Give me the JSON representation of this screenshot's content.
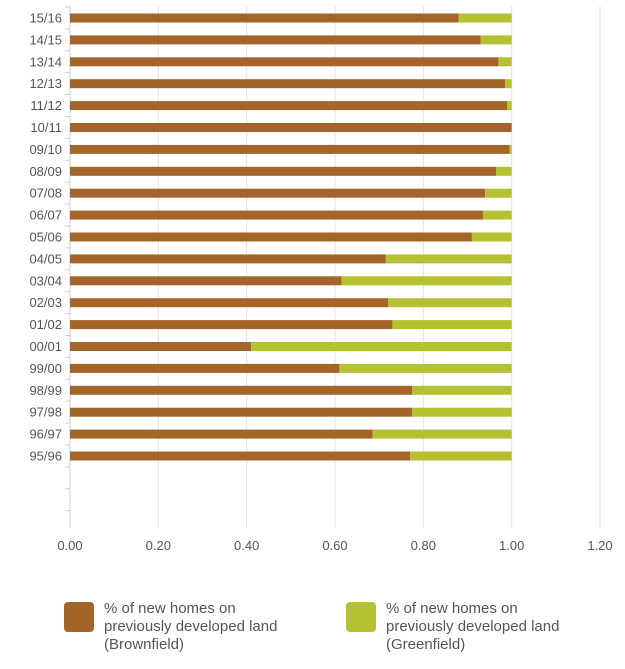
{
  "chart_data": {
    "type": "bar",
    "orientation": "horizontal",
    "stacked": true,
    "categories": [
      "15/16",
      "14/15",
      "13/14",
      "12/13",
      "11/12",
      "10/11",
      "09/10",
      "08/09",
      "07/08",
      "06/07",
      "05/06",
      "04/05",
      "03/04",
      "02/03",
      "01/02",
      "00/01",
      "99/00",
      "98/99",
      "97/98",
      "96/97",
      "95/96"
    ],
    "series": [
      {
        "name": "% of new homes on previously developed land (Brownfield)",
        "color": "#a5652a",
        "values": [
          0.88,
          0.93,
          0.97,
          0.985,
          0.99,
          1.0,
          0.995,
          0.965,
          0.94,
          0.935,
          0.91,
          0.715,
          0.615,
          0.72,
          0.73,
          0.41,
          0.61,
          0.775,
          0.775,
          0.685,
          0.77
        ]
      },
      {
        "name": "% of new homes on previously developed land (Greenfield)",
        "color": "#b5c130",
        "values": [
          0.12,
          0.07,
          0.03,
          0.015,
          0.01,
          0.0,
          0.005,
          0.035,
          0.06,
          0.065,
          0.09,
          0.285,
          0.385,
          0.28,
          0.27,
          0.59,
          0.39,
          0.225,
          0.225,
          0.315,
          0.23
        ]
      }
    ],
    "xlim": [
      0,
      1.2
    ],
    "xticks": [
      "0.00",
      "0.20",
      "0.40",
      "0.60",
      "0.80",
      "1.00",
      "1.20"
    ],
    "grid": "vertical",
    "legend_position": "bottom"
  },
  "legend": {
    "brownfield": {
      "line1": "% of new homes on",
      "line2": "previously developed land",
      "line3": "(Brownfield)"
    },
    "greenfield": {
      "line1": "% of new homes on",
      "line2": "previously developed land",
      "line3": "(Greenfield)"
    }
  }
}
